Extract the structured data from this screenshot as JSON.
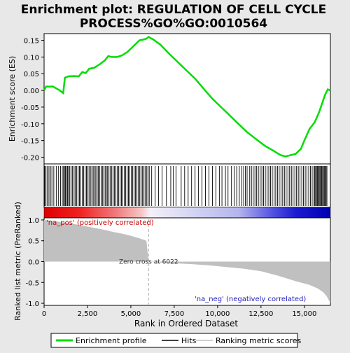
{
  "chart_data": {
    "type": "line",
    "title_lines": [
      "Enrichment plot: REGULATION OF CELL CYCLE",
      "PROCESS%GO%GO:0010564"
    ],
    "enrichment_panel": {
      "ylabel": "Enrichment score (ES)",
      "ylim": [
        -0.22,
        0.17
      ],
      "yticks": [
        -0.2,
        -0.15,
        -0.1,
        -0.05,
        0.0,
        0.05,
        0.1,
        0.15
      ],
      "ytick_labels": [
        "-0.20",
        "-0.15",
        "-0.10",
        "-0.05",
        "0.00",
        "0.05",
        "0.10",
        "0.15"
      ],
      "series_name": "Enrichment profile",
      "color": "#00dd00",
      "points": [
        [
          0,
          0.0
        ],
        [
          120,
          0.012
        ],
        [
          300,
          0.011
        ],
        [
          500,
          0.012
        ],
        [
          700,
          0.006
        ],
        [
          900,
          0.0
        ],
        [
          1100,
          -0.008
        ],
        [
          1200,
          0.038
        ],
        [
          1400,
          0.042
        ],
        [
          1700,
          0.043
        ],
        [
          2000,
          0.042
        ],
        [
          2200,
          0.055
        ],
        [
          2400,
          0.052
        ],
        [
          2600,
          0.065
        ],
        [
          2900,
          0.068
        ],
        [
          3200,
          0.078
        ],
        [
          3500,
          0.09
        ],
        [
          3700,
          0.103
        ],
        [
          3900,
          0.1
        ],
        [
          4200,
          0.1
        ],
        [
          4500,
          0.105
        ],
        [
          4800,
          0.115
        ],
        [
          5100,
          0.13
        ],
        [
          5300,
          0.14
        ],
        [
          5500,
          0.15
        ],
        [
          5700,
          0.152
        ],
        [
          5900,
          0.155
        ],
        [
          6022,
          0.16
        ],
        [
          6300,
          0.152
        ],
        [
          6700,
          0.137
        ],
        [
          7200,
          0.11
        ],
        [
          7700,
          0.085
        ],
        [
          8200,
          0.06
        ],
        [
          8700,
          0.035
        ],
        [
          9200,
          0.005
        ],
        [
          9700,
          -0.025
        ],
        [
          10200,
          -0.05
        ],
        [
          10700,
          -0.075
        ],
        [
          11200,
          -0.1
        ],
        [
          11700,
          -0.125
        ],
        [
          12200,
          -0.145
        ],
        [
          12700,
          -0.165
        ],
        [
          13200,
          -0.18
        ],
        [
          13600,
          -0.193
        ],
        [
          13900,
          -0.198
        ],
        [
          14200,
          -0.194
        ],
        [
          14500,
          -0.19
        ],
        [
          14800,
          -0.175
        ],
        [
          15000,
          -0.15
        ],
        [
          15300,
          -0.115
        ],
        [
          15600,
          -0.095
        ],
        [
          15850,
          -0.065
        ],
        [
          16050,
          -0.035
        ],
        [
          16200,
          -0.012
        ],
        [
          16350,
          0.003
        ],
        [
          16500,
          0.0
        ]
      ]
    },
    "hits_panel": {
      "series_name": "Hits",
      "gene_positions": [
        40,
        110,
        190,
        280,
        370,
        450,
        560,
        700,
        820,
        950,
        1050,
        1120,
        1180,
        1230,
        1290,
        1350,
        1410,
        1480,
        1560,
        1640,
        1730,
        1800,
        1880,
        1960,
        2040,
        2110,
        2200,
        2280,
        2360,
        2440,
        2520,
        2590,
        2670,
        2750,
        2830,
        2900,
        2980,
        3060,
        3130,
        3210,
        3290,
        3360,
        3440,
        3520,
        3590,
        3660,
        3740,
        3820,
        3900,
        3980,
        4060,
        4140,
        4220,
        4300,
        4380,
        4460,
        4540,
        4620,
        4700,
        4780,
        4860,
        4940,
        5020,
        5100,
        5180,
        5260,
        5340,
        5420,
        5500,
        5580,
        5660,
        5740,
        5820,
        5900,
        5980,
        6060,
        6200,
        6400,
        6600,
        6800,
        7050,
        7300,
        7450,
        7600,
        7900,
        8100,
        8300,
        8500,
        8700,
        8900,
        9100,
        9300,
        9500,
        9700,
        9900,
        10100,
        10250,
        10450,
        10600,
        10800,
        10950,
        11100,
        11250,
        11400,
        11500,
        11600,
        11700,
        11850,
        11950,
        12050,
        12150,
        12250,
        12350,
        12450,
        12550,
        12650,
        12750,
        12850,
        12950,
        13050,
        13150,
        13250,
        13350,
        13450,
        13550,
        13650,
        13750,
        13850,
        13950,
        14050,
        14150,
        14250,
        14350,
        14450,
        14550,
        14650,
        14750,
        14850,
        14950,
        15050,
        15150,
        15250,
        15350,
        15450,
        15550,
        15600,
        15650,
        15700,
        15750,
        15800,
        15850,
        15900,
        15950,
        16000,
        16050,
        16100,
        16150,
        16200,
        16250,
        16300
      ]
    },
    "ranked_panel": {
      "ylabel": "Ranked list metric (PreRanked)",
      "xlabel": "Rank in Ordered Dataset",
      "ylim": [
        -1.05,
        1.05
      ],
      "yticks": [
        -1.0,
        -0.5,
        0.0,
        0.5,
        1.0
      ],
      "ytick_labels": [
        "-1.0",
        "-0.5",
        "0.0",
        "0.5",
        "1.0"
      ],
      "xlim": [
        0,
        16500
      ],
      "xticks": [
        0,
        2500,
        5000,
        7500,
        10000,
        12500,
        15000
      ],
      "xtick_labels": [
        "0",
        "2,500",
        "5,000",
        "7,500",
        "10,000",
        "12,500",
        "15,000"
      ],
      "series_name": "Ranking metric scores",
      "zero_cross_rank": 6022,
      "zero_cross_label": "Zero cross at 6022",
      "pos_label": "'na_pos' (positively correlated)",
      "neg_label": "'na_neg' (negatively correlated)",
      "profile": [
        [
          0,
          1.0
        ],
        [
          200,
          0.99
        ],
        [
          500,
          0.98
        ],
        [
          800,
          0.96
        ],
        [
          1200,
          0.93
        ],
        [
          1600,
          0.91
        ],
        [
          2000,
          0.88
        ],
        [
          2500,
          0.84
        ],
        [
          3000,
          0.8
        ],
        [
          3500,
          0.76
        ],
        [
          4000,
          0.71
        ],
        [
          4500,
          0.67
        ],
        [
          5000,
          0.62
        ],
        [
          5500,
          0.56
        ],
        [
          5900,
          0.5
        ],
        [
          6022,
          0.0
        ],
        [
          6500,
          -0.02
        ],
        [
          7500,
          -0.04
        ],
        [
          8500,
          -0.06
        ],
        [
          9500,
          -0.09
        ],
        [
          10500,
          -0.13
        ],
        [
          11500,
          -0.17
        ],
        [
          12500,
          -0.23
        ],
        [
          13500,
          -0.34
        ],
        [
          14500,
          -0.47
        ],
        [
          15300,
          -0.56
        ],
        [
          15800,
          -0.65
        ],
        [
          16100,
          -0.74
        ],
        [
          16300,
          -0.84
        ],
        [
          16450,
          -0.96
        ],
        [
          16500,
          -1.0
        ]
      ]
    },
    "legend": {
      "placement": "bottom",
      "entries": [
        {
          "label": "Enrichment profile",
          "color": "#00dd00"
        },
        {
          "label": "Hits",
          "color": "#000000"
        },
        {
          "label": "Ranking metric scores",
          "color": "#c0c0c0"
        }
      ]
    }
  }
}
